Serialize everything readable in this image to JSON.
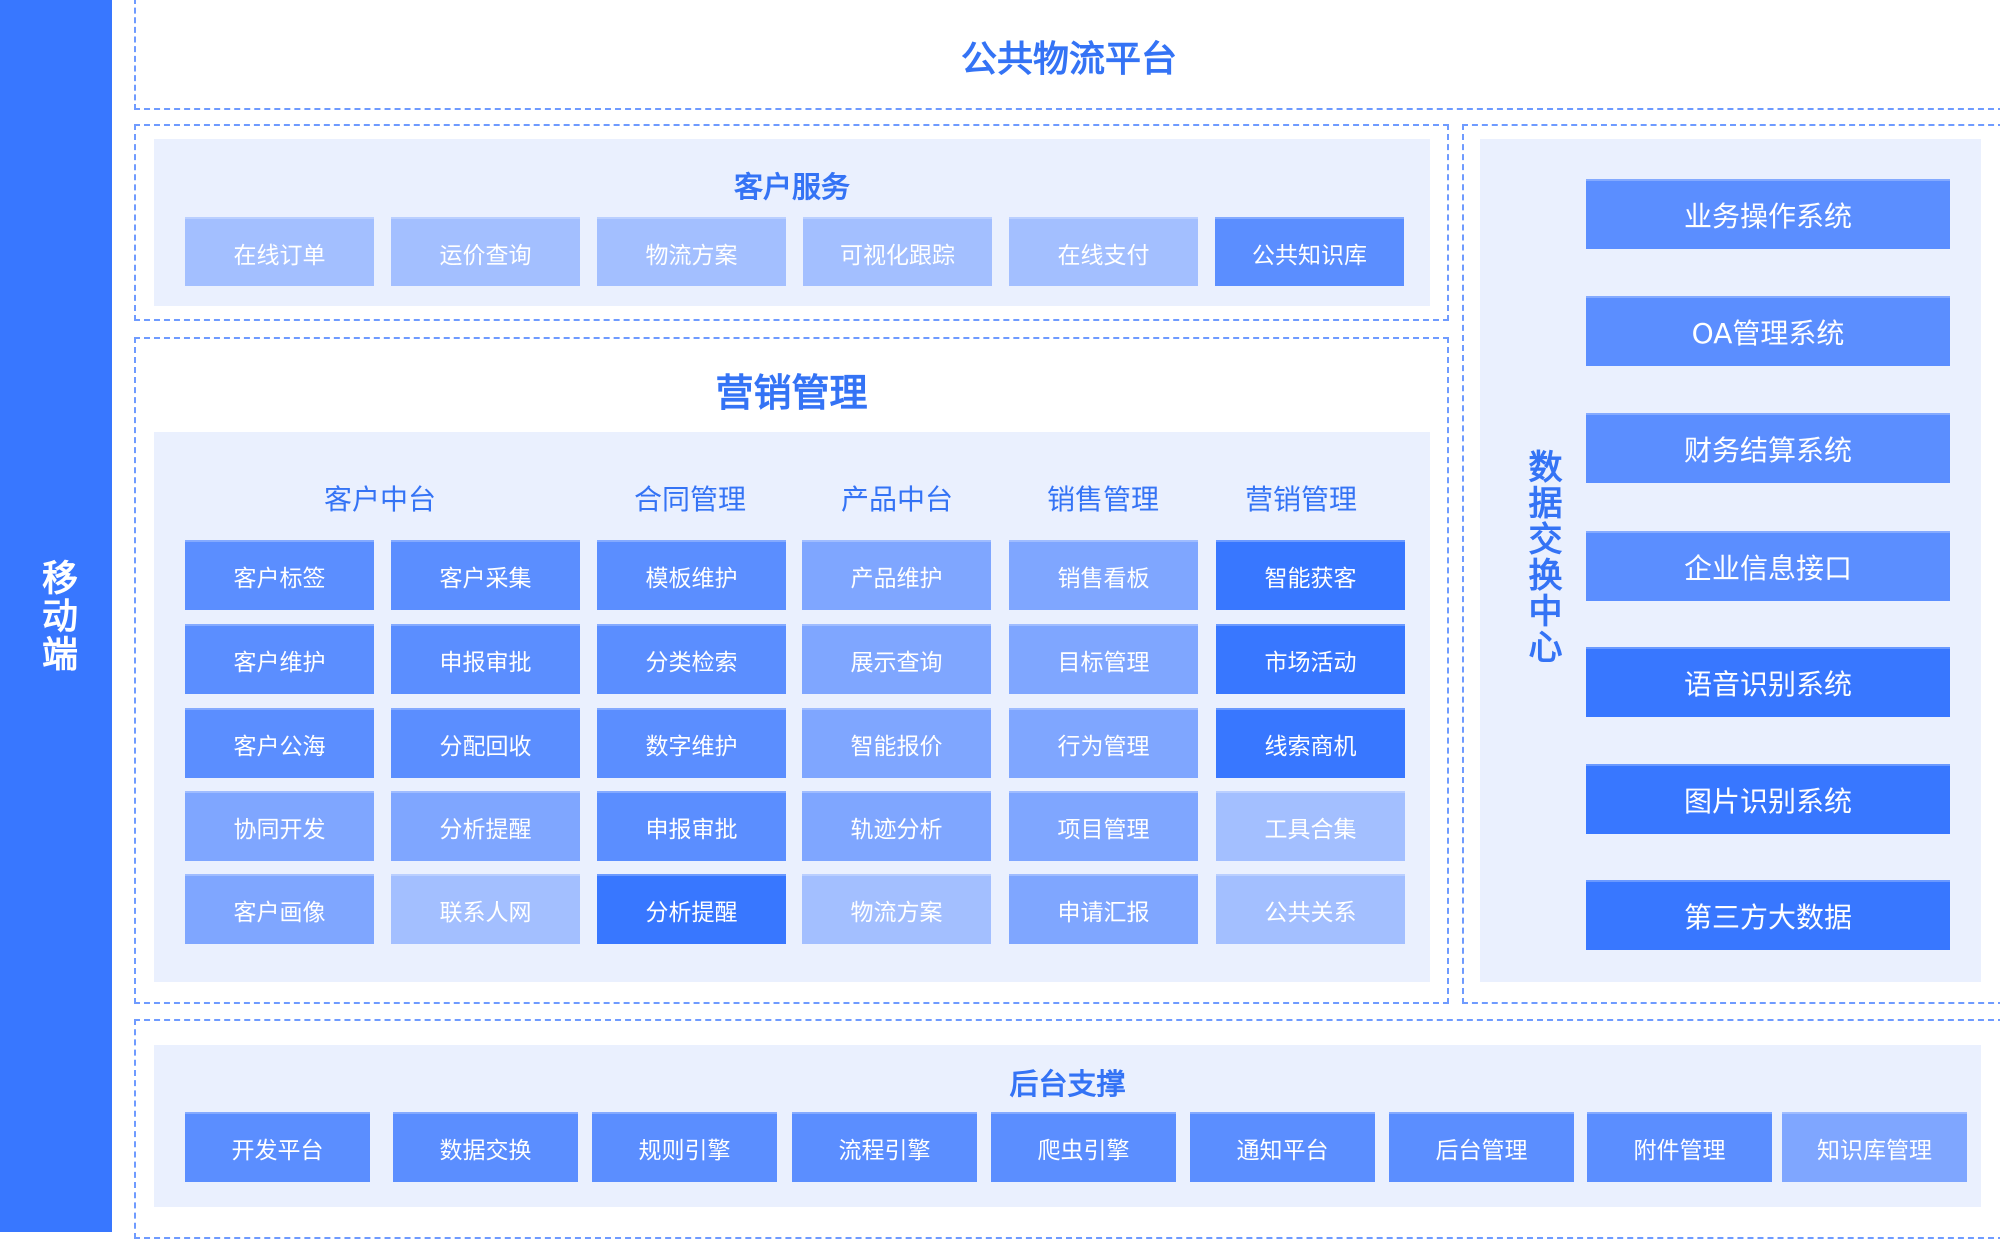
{
  "colors": {
    "strong": "#3877ff",
    "medium": "#5b8eff",
    "light": "#7fa6ff",
    "lightest": "#a3bfff",
    "title": "#3473f5",
    "panel": "#eaf0fe"
  },
  "sidebar": {
    "label": "移动端"
  },
  "platform": {
    "title": "公共物流平台"
  },
  "customer_service": {
    "title": "客户服务",
    "items": [
      {
        "label": "在线订单",
        "shade": "lightest"
      },
      {
        "label": "运价查询",
        "shade": "lightest"
      },
      {
        "label": "物流方案",
        "shade": "lightest"
      },
      {
        "label": "可视化跟踪",
        "shade": "lightest"
      },
      {
        "label": "在线支付",
        "shade": "lightest"
      },
      {
        "label": "公共知识库",
        "shade": "medium"
      }
    ]
  },
  "marketing": {
    "title": "营销管理",
    "columns": [
      "客户中台",
      "合同管理",
      "产品中台",
      "销售管理",
      "营销管理"
    ],
    "rows": [
      [
        {
          "label": "客户标签",
          "shade": "medium"
        },
        {
          "label": "客户采集",
          "shade": "medium"
        },
        {
          "label": "模板维护",
          "shade": "medium"
        },
        {
          "label": "产品维护",
          "shade": "light"
        },
        {
          "label": "销售看板",
          "shade": "light"
        },
        {
          "label": "智能获客",
          "shade": "strong"
        }
      ],
      [
        {
          "label": "客户维护",
          "shade": "medium"
        },
        {
          "label": "申报审批",
          "shade": "medium"
        },
        {
          "label": "分类检索",
          "shade": "medium"
        },
        {
          "label": "展示查询",
          "shade": "light"
        },
        {
          "label": "目标管理",
          "shade": "light"
        },
        {
          "label": "市场活动",
          "shade": "strong"
        }
      ],
      [
        {
          "label": "客户公海",
          "shade": "medium"
        },
        {
          "label": "分配回收",
          "shade": "medium"
        },
        {
          "label": "数字维护",
          "shade": "medium"
        },
        {
          "label": "智能报价",
          "shade": "light"
        },
        {
          "label": "行为管理",
          "shade": "light"
        },
        {
          "label": "线索商机",
          "shade": "strong"
        }
      ],
      [
        {
          "label": "协同开发",
          "shade": "light"
        },
        {
          "label": "分析提醒",
          "shade": "light"
        },
        {
          "label": "申报审批",
          "shade": "medium"
        },
        {
          "label": "轨迹分析",
          "shade": "light"
        },
        {
          "label": "项目管理",
          "shade": "light"
        },
        {
          "label": "工具合集",
          "shade": "lightest"
        }
      ],
      [
        {
          "label": "客户画像",
          "shade": "light"
        },
        {
          "label": "联系人网",
          "shade": "lightest"
        },
        {
          "label": "分析提醒",
          "shade": "strong"
        },
        {
          "label": "物流方案",
          "shade": "lightest"
        },
        {
          "label": "申请汇报",
          "shade": "light"
        },
        {
          "label": "公共关系",
          "shade": "lightest"
        }
      ]
    ]
  },
  "data_exchange": {
    "title": "数据交换中心",
    "items": [
      {
        "label": "业务操作系统",
        "shade": "medium"
      },
      {
        "label": "OA管理系统",
        "shade": "medium"
      },
      {
        "label": "财务结算系统",
        "shade": "medium"
      },
      {
        "label": "企业信息接口",
        "shade": "medium"
      },
      {
        "label": "语音识别系统",
        "shade": "strong"
      },
      {
        "label": "图片识别系统",
        "shade": "strong"
      },
      {
        "label": "第三方大数据",
        "shade": "strong"
      }
    ]
  },
  "backend": {
    "title": "后台支撑",
    "items": [
      {
        "label": "开发平台",
        "shade": "medium"
      },
      {
        "label": "数据交换",
        "shade": "medium"
      },
      {
        "label": "规则引擎",
        "shade": "medium"
      },
      {
        "label": "流程引擎",
        "shade": "medium"
      },
      {
        "label": "爬虫引擎",
        "shade": "medium"
      },
      {
        "label": "通知平台",
        "shade": "medium"
      },
      {
        "label": "后台管理",
        "shade": "medium"
      },
      {
        "label": "附件管理",
        "shade": "medium"
      },
      {
        "label": "知识库管理",
        "shade": "light"
      }
    ]
  }
}
